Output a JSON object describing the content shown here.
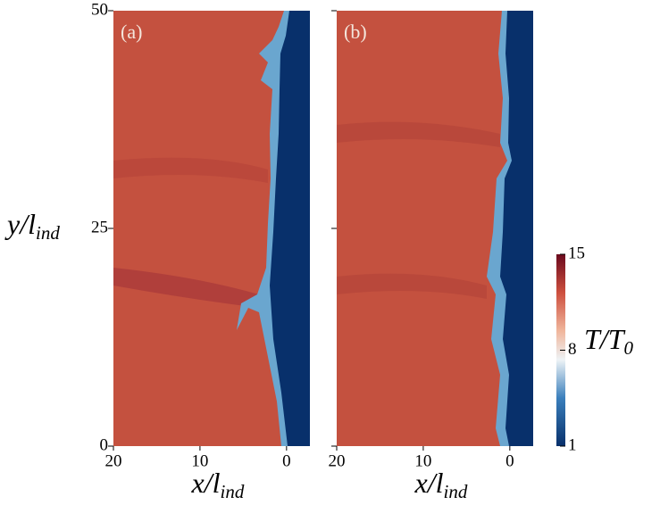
{
  "chart_data": [
    {
      "type": "field",
      "panel_label": "(a)",
      "xlabel": "x/l",
      "xlabel_sub": "ind",
      "ylabel": "y/l",
      "ylabel_sub": "ind",
      "xlim": [
        20,
        -2.7
      ],
      "xticks": [
        20,
        10,
        0
      ],
      "ylim": [
        0,
        50
      ],
      "yticks": [
        0,
        25,
        50
      ]
    },
    {
      "type": "field",
      "panel_label": "(b)",
      "xlabel": "x/l",
      "xlabel_sub": "ind",
      "xlim": [
        20,
        -2.7
      ],
      "xticks": [
        20,
        10,
        0
      ],
      "ylim": [
        0,
        50
      ]
    },
    {
      "type": "colorbar",
      "label": "T/T",
      "label_sub": "0",
      "clim": [
        1,
        15
      ],
      "ticks": [
        1,
        8,
        15
      ]
    }
  ]
}
